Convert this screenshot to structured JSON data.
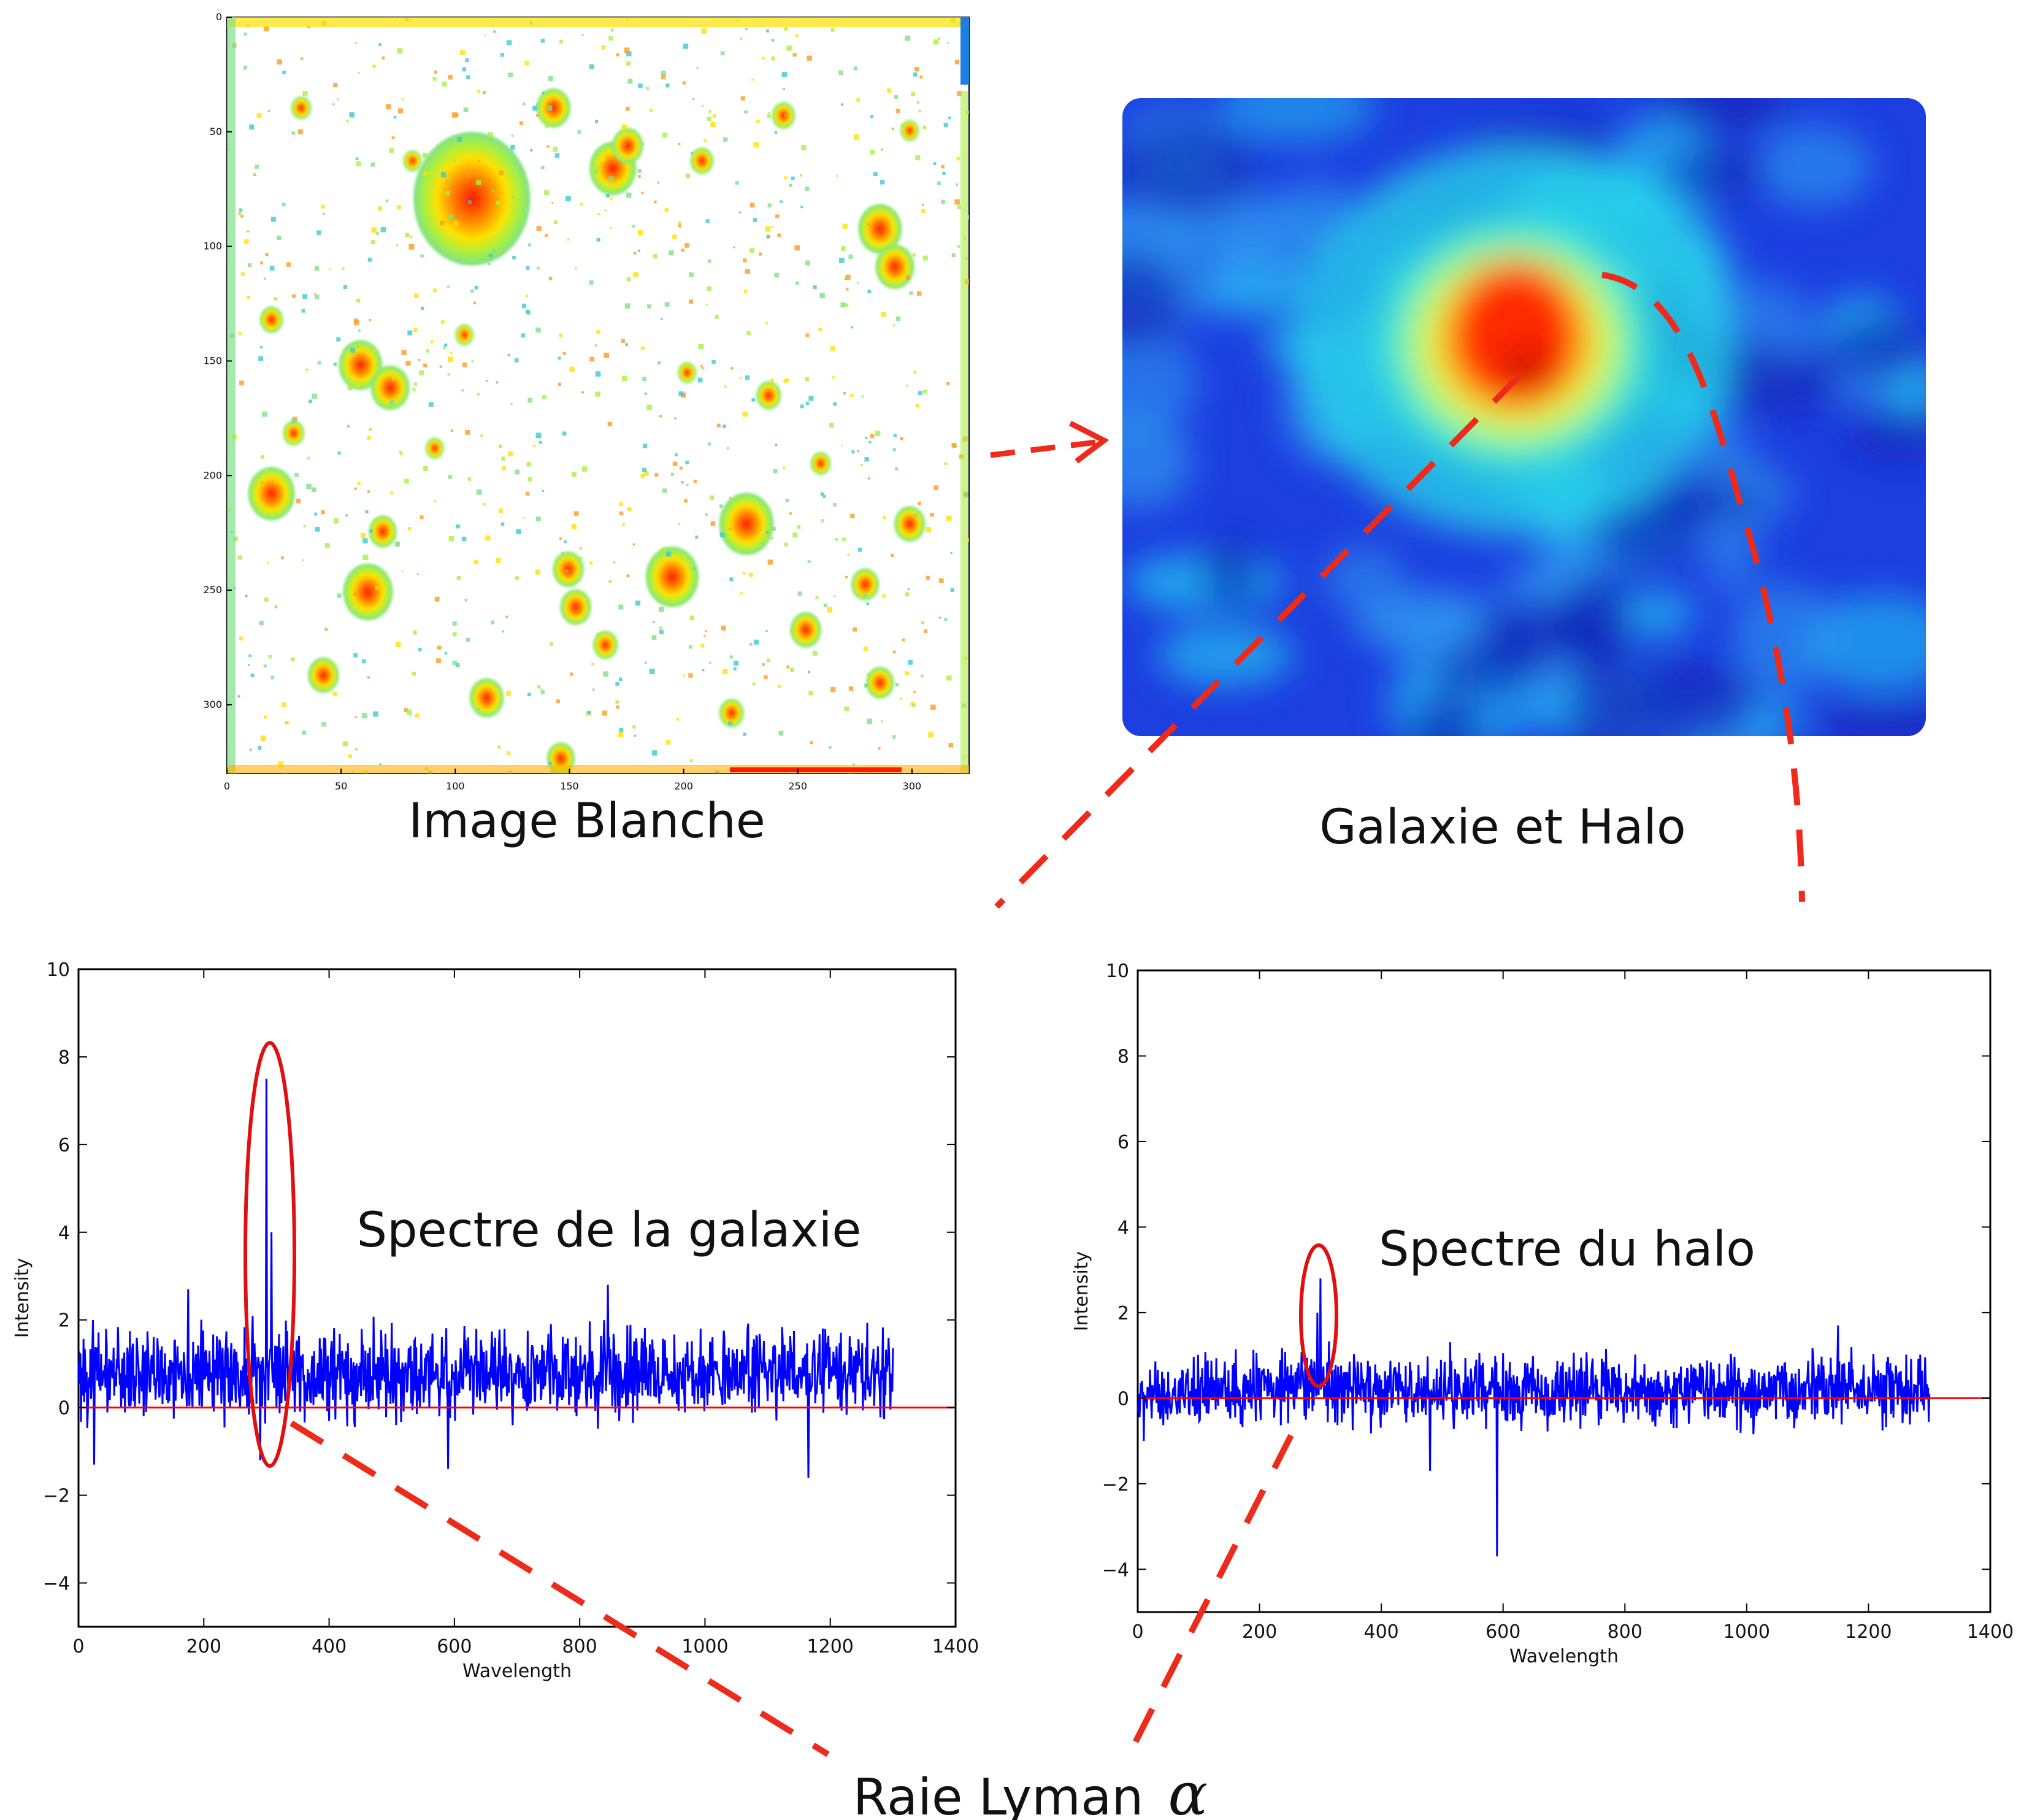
{
  "captions": {
    "white_image": "Image Blanche",
    "galaxy_halo": "Galaxie et Halo",
    "galaxy_spectrum": "Spectre de la galaxie",
    "halo_spectrum": "Spectre du halo",
    "lyman_line": "Raie Lyman",
    "lyman_symbol": "α"
  },
  "colors": {
    "spectrum": "#0000ff",
    "zero_line": "#ff0000",
    "annotation": "#ee2a1b",
    "jet_low": "#1d3fe0",
    "jet_mid": "#25d0e8",
    "jet_high": "#ff2a00"
  },
  "white_image": {
    "x_ticks": [
      "0",
      "50",
      "100",
      "150",
      "200",
      "250",
      "300"
    ],
    "y_ticks": [
      "0",
      "50",
      "100",
      "150",
      "200",
      "250",
      "300"
    ],
    "xlim": [
      0,
      325
    ],
    "ylim": [
      0,
      330
    ]
  },
  "chart_data": [
    {
      "type": "line",
      "title": "",
      "xlabel": "Wavelength",
      "ylabel": "Intensity",
      "xlim": [
        0,
        1400
      ],
      "ylim": [
        -5,
        10
      ],
      "x_ticks": [
        "0",
        "200",
        "400",
        "600",
        "800",
        "1000",
        "1200",
        "1400"
      ],
      "y_ticks": [
        "−4",
        "−2",
        "0",
        "2",
        "4",
        "6",
        "8",
        "10"
      ],
      "grid": false,
      "reference_line": {
        "y": 0
      },
      "series": [
        {
          "x_range": [
            0,
            1300
          ],
          "baseline": 0.8,
          "noise": 0.55,
          "peaks": [
            {
              "x": 300,
              "y": 7.5
            },
            {
              "x": 308,
              "y": 4.0
            },
            {
              "x": 845,
              "y": 2.8
            },
            {
              "x": 175,
              "y": 2.7
            },
            {
              "x": 1165,
              "y": -1.6
            },
            {
              "x": 590,
              "y": -1.4
            },
            {
              "x": 25,
              "y": -1.3
            },
            {
              "x": 290,
              "y": -1.2
            }
          ]
        }
      ]
    },
    {
      "type": "line",
      "title": "",
      "xlabel": "Wavelength",
      "ylabel": "Intensity",
      "xlim": [
        0,
        1400
      ],
      "ylim": [
        -5,
        10
      ],
      "x_ticks": [
        "0",
        "200",
        "400",
        "600",
        "800",
        "1000",
        "1200",
        "1400"
      ],
      "y_ticks": [
        "−4",
        "−2",
        "0",
        "2",
        "4",
        "6",
        "8",
        "10"
      ],
      "grid": false,
      "reference_line": {
        "y": 0
      },
      "series": [
        {
          "x_range": [
            0,
            1300
          ],
          "baseline": 0.2,
          "noise": 0.45,
          "peaks": [
            {
              "x": 300,
              "y": 2.8
            },
            {
              "x": 295,
              "y": 2.0
            },
            {
              "x": 1150,
              "y": 1.7
            },
            {
              "x": 590,
              "y": -3.7
            },
            {
              "x": 480,
              "y": -1.7
            },
            {
              "x": 10,
              "y": -1.0
            }
          ]
        }
      ]
    }
  ]
}
